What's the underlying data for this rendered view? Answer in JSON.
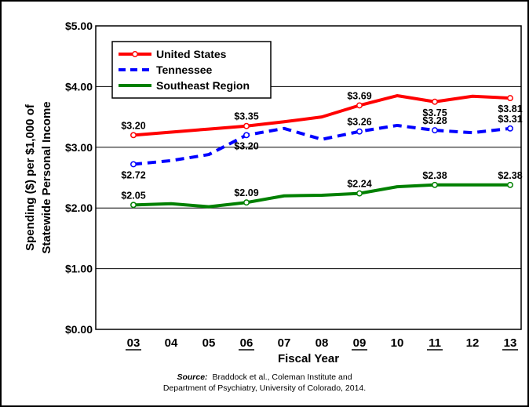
{
  "chart_data": {
    "type": "line",
    "xlabel": "Fiscal Year",
    "ylabel_line1": "Spending ($) per $1,000 of",
    "ylabel_line2": "Statewide Personal Income",
    "ylim": [
      0,
      5
    ],
    "yticks": [
      "$0.00",
      "$1.00",
      "$2.00",
      "$3.00",
      "$4.00",
      "$5.00"
    ],
    "ytick_values": [
      0,
      1,
      2,
      3,
      4,
      5
    ],
    "categories": [
      "03",
      "04",
      "05",
      "06",
      "07",
      "08",
      "09",
      "10",
      "11",
      "12",
      "13"
    ],
    "underlined_categories": [
      "03",
      "06",
      "09",
      "11",
      "13"
    ],
    "grid": "horizontal",
    "legend_position": "top-left",
    "series": [
      {
        "name": "United States",
        "color": "#ff0000",
        "style": "solid",
        "values": [
          3.2,
          3.25,
          3.3,
          3.35,
          3.42,
          3.5,
          3.69,
          3.85,
          3.75,
          3.84,
          3.81
        ],
        "markers": [
          0,
          3,
          6,
          8,
          10
        ],
        "labels": [
          {
            "index": 0,
            "text": "$3.20",
            "pos": "above"
          },
          {
            "index": 3,
            "text": "$3.35",
            "pos": "above"
          },
          {
            "index": 6,
            "text": "$3.69",
            "pos": "above"
          },
          {
            "index": 8,
            "text": "$3.75",
            "pos": "below"
          },
          {
            "index": 10,
            "text": "$3.81",
            "pos": "below"
          }
        ]
      },
      {
        "name": "Tennessee",
        "color": "#0000ff",
        "style": "dashed",
        "values": [
          2.72,
          2.78,
          2.88,
          3.2,
          3.31,
          3.13,
          3.26,
          3.36,
          3.28,
          3.24,
          3.31
        ],
        "markers": [
          0,
          3,
          6,
          8,
          10
        ],
        "labels": [
          {
            "index": 0,
            "text": "$2.72",
            "pos": "below"
          },
          {
            "index": 3,
            "text": "$3.20",
            "pos": "below"
          },
          {
            "index": 6,
            "text": "$3.26",
            "pos": "above"
          },
          {
            "index": 8,
            "text": "$3.28",
            "pos": "above"
          },
          {
            "index": 10,
            "text": "$3.31",
            "pos": "above"
          }
        ]
      },
      {
        "name": "Southeast Region",
        "color": "#008000",
        "style": "solid",
        "values": [
          2.05,
          2.07,
          2.02,
          2.09,
          2.2,
          2.21,
          2.24,
          2.35,
          2.38,
          2.38,
          2.38
        ],
        "markers": [
          0,
          3,
          6,
          8,
          10
        ],
        "labels": [
          {
            "index": 0,
            "text": "$2.05",
            "pos": "above"
          },
          {
            "index": 3,
            "text": "$2.09",
            "pos": "above"
          },
          {
            "index": 6,
            "text": "$2.24",
            "pos": "above"
          },
          {
            "index": 8,
            "text": "$2.38",
            "pos": "above"
          },
          {
            "index": 10,
            "text": "$2.38",
            "pos": "above"
          }
        ]
      }
    ]
  },
  "source": {
    "label": "Source:",
    "line1": "Braddock et al., Coleman Institute and",
    "line2": "Department of Psychiatry, University of Colorado, 2014."
  }
}
